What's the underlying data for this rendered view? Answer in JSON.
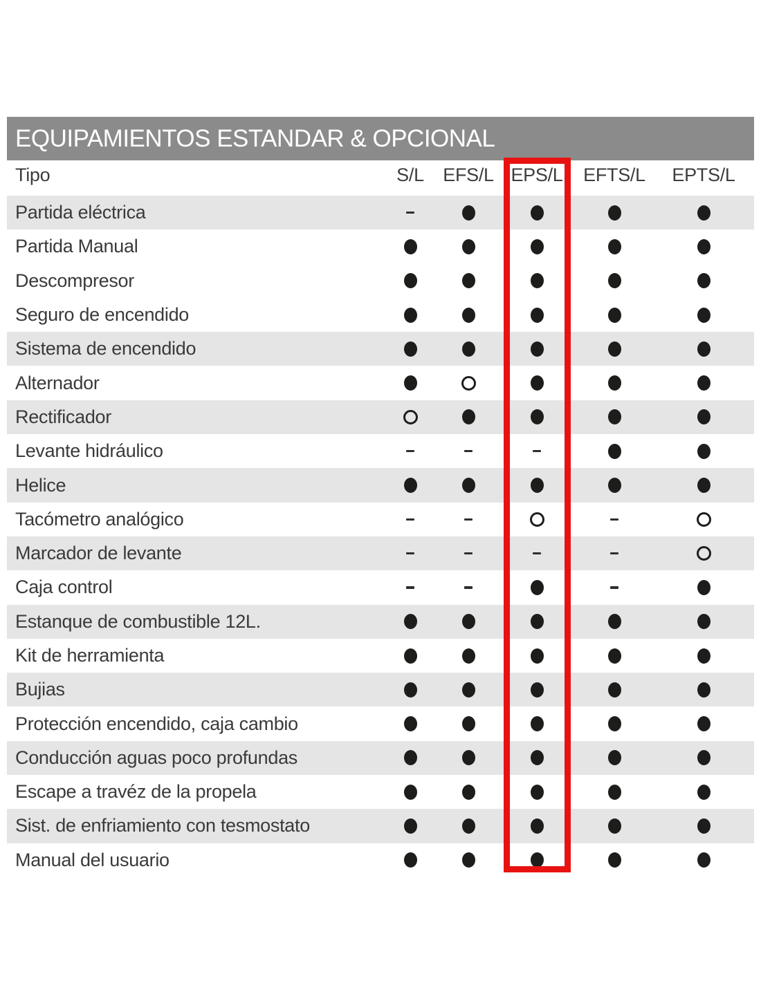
{
  "title": "EQUIPAMIENTOS ESTANDAR & OPCIONAL",
  "table": {
    "type_column_header": "Tipo",
    "columns": [
      "S/L",
      "EFS/L",
      "EPS/L",
      "EFTS/L",
      "EPTS/L"
    ],
    "highlighted_column": "EPS/L",
    "symbols": {
      "filled": "●",
      "open": "○",
      "dash": "-"
    },
    "rows": [
      {
        "label": "Partida eléctrica",
        "shaded": true,
        "values": [
          "dash",
          "filled",
          "filled",
          "filled",
          "filled"
        ]
      },
      {
        "label": "Partida Manual",
        "shaded": false,
        "values": [
          "filled",
          "filled",
          "filled",
          "filled",
          "filled"
        ]
      },
      {
        "label": "Descompresor",
        "shaded": false,
        "values": [
          "filled",
          "filled",
          "filled",
          "filled",
          "filled"
        ]
      },
      {
        "label": "Seguro de encendido",
        "shaded": false,
        "values": [
          "filled",
          "filled",
          "filled",
          "filled",
          "filled"
        ]
      },
      {
        "label": "Sistema de encendido",
        "shaded": true,
        "values": [
          "filled",
          "filled",
          "filled",
          "filled",
          "filled"
        ]
      },
      {
        "label": "Alternador",
        "shaded": false,
        "values": [
          "filled",
          "open",
          "filled",
          "filled",
          "filled"
        ]
      },
      {
        "label": "Rectificador",
        "shaded": true,
        "values": [
          "open",
          "filled",
          "filled",
          "filled",
          "filled"
        ]
      },
      {
        "label": "Levante hidráulico",
        "shaded": false,
        "values": [
          "dash",
          "dash",
          "dash",
          "filled",
          "filled"
        ]
      },
      {
        "label": "Helice",
        "shaded": true,
        "values": [
          "filled",
          "filled",
          "filled",
          "filled",
          "filled"
        ]
      },
      {
        "label": "Tacómetro analógico",
        "shaded": false,
        "values": [
          "dash",
          "dash",
          "open",
          "dash",
          "open"
        ]
      },
      {
        "label": "Marcador de levante",
        "shaded": true,
        "values": [
          "dash",
          "dash",
          "dash",
          "dash",
          "open"
        ]
      },
      {
        "label": "Caja control",
        "shaded": false,
        "values": [
          "dash",
          "dash",
          "filled",
          "dash",
          "filled"
        ]
      },
      {
        "label": "Estanque de combustible 12L.",
        "shaded": true,
        "values": [
          "filled",
          "filled",
          "filled",
          "filled",
          "filled"
        ]
      },
      {
        "label": "Kit de herramienta",
        "shaded": false,
        "values": [
          "filled",
          "filled",
          "filled",
          "filled",
          "filled"
        ]
      },
      {
        "label": "Bujias",
        "shaded": true,
        "values": [
          "filled",
          "filled",
          "filled",
          "filled",
          "filled"
        ]
      },
      {
        "label": "Protección encendido, caja cambio",
        "shaded": false,
        "values": [
          "filled",
          "filled",
          "filled",
          "filled",
          "filled"
        ]
      },
      {
        "label": "Conducción aguas poco profundas",
        "shaded": true,
        "values": [
          "filled",
          "filled",
          "filled",
          "filled",
          "filled"
        ]
      },
      {
        "label": "Escape a travéz de la propela",
        "shaded": false,
        "values": [
          "filled",
          "filled",
          "filled",
          "filled",
          "filled"
        ]
      },
      {
        "label": "Sist. de enfriamiento con tesmostato",
        "shaded": true,
        "values": [
          "filled",
          "filled",
          "filled",
          "filled",
          "filled"
        ]
      },
      {
        "label": "Manual del usuario",
        "shaded": false,
        "values": [
          "filled",
          "filled",
          "filled",
          "filled",
          "filled"
        ]
      }
    ]
  },
  "colors": {
    "title_bar_bg": "#8b8b8b",
    "title_text": "#ffffff",
    "row_shade": "#e5e5e6",
    "highlight_box": "#e81311",
    "dot": "#1d1d1b",
    "text": "#3a3a3a"
  }
}
